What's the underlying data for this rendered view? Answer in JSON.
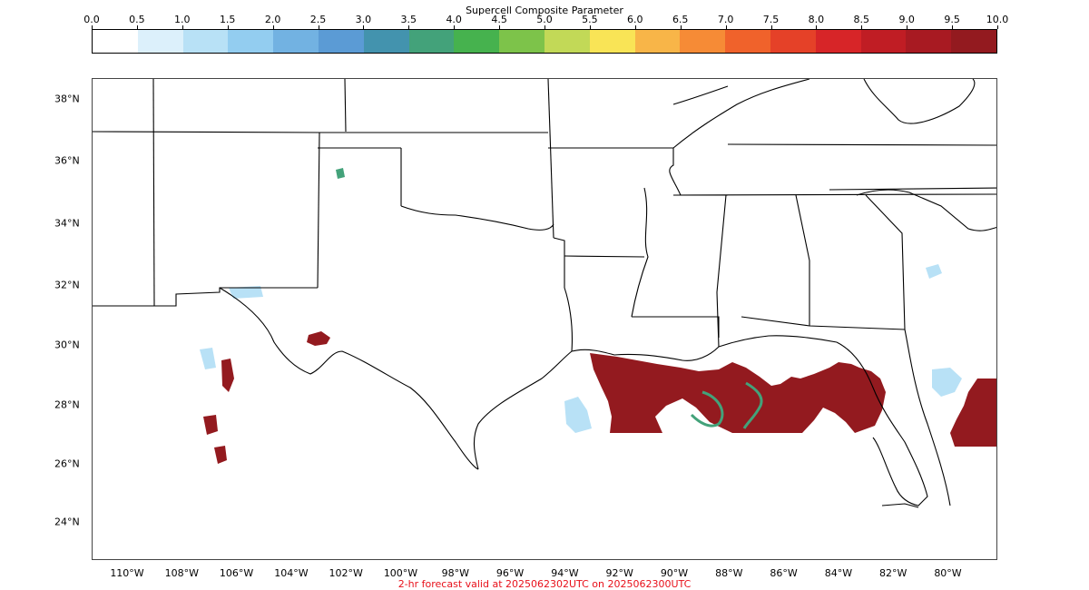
{
  "colorbar": {
    "title": "Supercell Composite Parameter",
    "ticks": [
      "0.0",
      "0.5",
      "1.0",
      "1.5",
      "2.0",
      "2.5",
      "3.0",
      "3.5",
      "4.0",
      "4.5",
      "5.0",
      "5.5",
      "6.0",
      "6.5",
      "7.0",
      "7.5",
      "8.0",
      "8.5",
      "9.0",
      "9.5",
      "10.0"
    ],
    "colors": [
      "#ffffff",
      "#dcf0fb",
      "#b8e1f6",
      "#93cdf0",
      "#72b2e2",
      "#5b9bd5",
      "#4393ae",
      "#43a27a",
      "#46b24e",
      "#7dc34a",
      "#c2d957",
      "#f9e456",
      "#f8b548",
      "#f68b36",
      "#f0622b",
      "#e54128",
      "#d72528",
      "#c01d24",
      "#a81a22",
      "#931a1f"
    ]
  },
  "map": {
    "lat_labels": [
      "38°N",
      "36°N",
      "34°N",
      "32°N",
      "30°N",
      "28°N",
      "26°N",
      "24°N"
    ],
    "lon_labels": [
      "110°W",
      "108°W",
      "106°W",
      "104°W",
      "102°W",
      "100°W",
      "98°W",
      "96°W",
      "94°W",
      "92°W",
      "90°W",
      "88°W",
      "86°W",
      "84°W",
      "82°W",
      "80°W"
    ],
    "field_colors": {
      "max": "#931a1f",
      "edge": "#c01d24",
      "mid": "#43a27a",
      "low": "#b8e1f6",
      "faint": "#dcf0fb"
    }
  },
  "footer": {
    "text": "2-hr forecast valid at 2025062302UTC on 2025062300UTC"
  }
}
